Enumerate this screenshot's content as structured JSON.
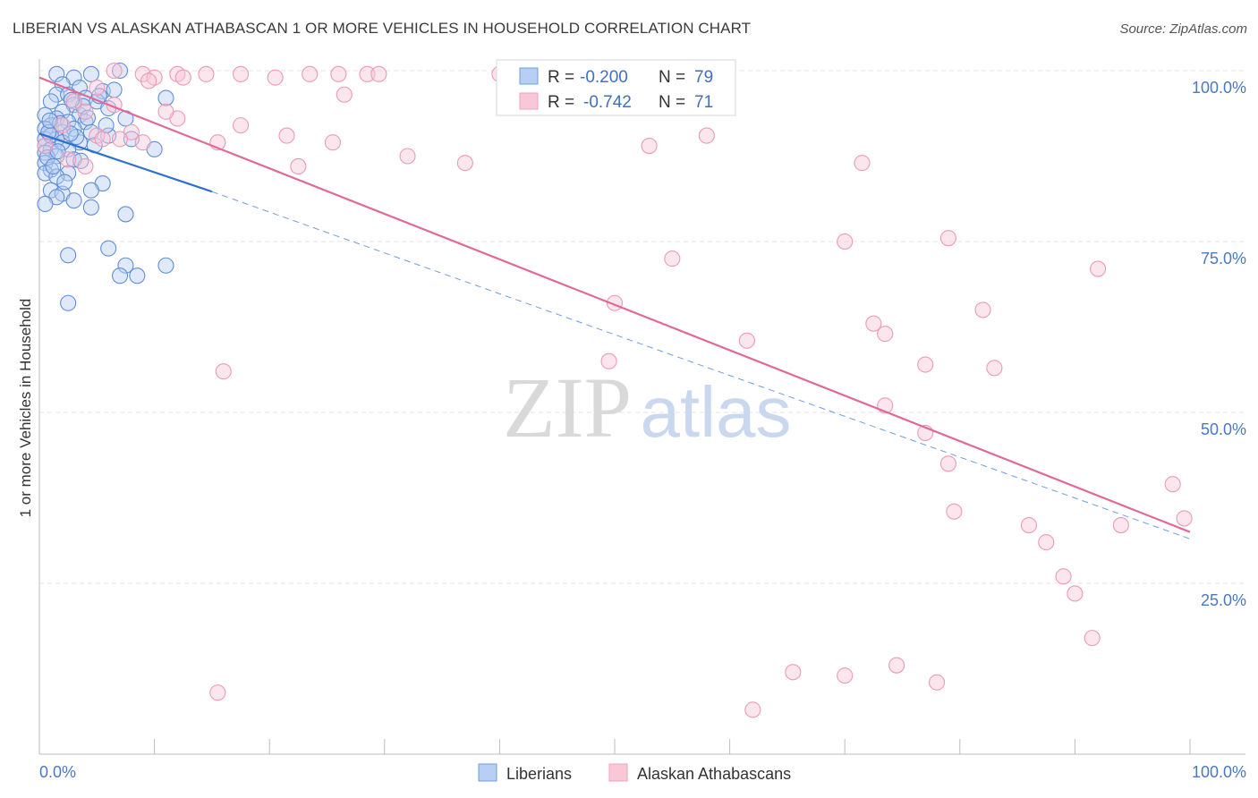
{
  "header": {
    "title": "LIBERIAN VS ALASKAN ATHABASCAN 1 OR MORE VEHICLES IN HOUSEHOLD CORRELATION CHART",
    "source": "Source: ZipAtlas.com"
  },
  "watermark": {
    "zip": "ZIP",
    "atlas": "atlas"
  },
  "chart_data": {
    "type": "scatter",
    "title": "LIBERIAN VS ALASKAN ATHABASCAN 1 OR MORE VEHICLES IN HOUSEHOLD CORRELATION CHART",
    "xlabel": "",
    "ylabel": "1 or more Vehicles in Household",
    "xlim": [
      0,
      100
    ],
    "ylim": [
      0,
      100
    ],
    "x_tick_labels": [
      "0.0%",
      "100.0%"
    ],
    "y_ticks": [
      25,
      50,
      75,
      100
    ],
    "y_tick_labels": [
      "25.0%",
      "50.0%",
      "75.0%",
      "100.0%"
    ],
    "grid": true,
    "legend_position": "top-center",
    "colors": {
      "Liberians": "#6f9de0",
      "Alaskan Athabascans": "#f0a0bb",
      "liberian_line": "#2f6fd0",
      "athabascan_line": "#e06a95"
    },
    "series": [
      {
        "name": "Liberians",
        "R": "-0.200",
        "N": "79",
        "trend": {
          "x0": 0,
          "y0": 90.8,
          "x1": 15,
          "y1": 82.3,
          "dashed_to_x": 100,
          "dashed_to_y": 31.5
        },
        "points": [
          [
            1.5,
            99.5
          ],
          [
            3.0,
            99.0
          ],
          [
            2.0,
            98.0
          ],
          [
            4.5,
            99.5
          ],
          [
            7.0,
            100
          ],
          [
            3.5,
            97.5
          ],
          [
            5.5,
            97.0
          ],
          [
            1.5,
            96.5
          ],
          [
            2.5,
            96.5
          ],
          [
            4.0,
            96.0
          ],
          [
            1.0,
            95.5
          ],
          [
            3.0,
            95.0
          ],
          [
            5.0,
            95.5
          ],
          [
            6.0,
            94.5
          ],
          [
            11.0,
            96.0
          ],
          [
            2.0,
            94.0
          ],
          [
            3.5,
            93.5
          ],
          [
            0.5,
            93.5
          ],
          [
            1.5,
            93.0
          ],
          [
            2.5,
            92.5
          ],
          [
            4.0,
            92.5
          ],
          [
            7.5,
            93.0
          ],
          [
            1.0,
            92.0
          ],
          [
            0.5,
            91.5
          ],
          [
            2.0,
            91.0
          ],
          [
            3.0,
            91.5
          ],
          [
            4.5,
            91.0
          ],
          [
            6.0,
            90.5
          ],
          [
            0.5,
            90.0
          ],
          [
            1.5,
            90.0
          ],
          [
            3.5,
            89.5
          ],
          [
            8.0,
            90.0
          ],
          [
            0.5,
            89.0
          ],
          [
            1.0,
            88.5
          ],
          [
            2.5,
            88.5
          ],
          [
            0.5,
            88.0
          ],
          [
            10.0,
            88.5
          ],
          [
            1.5,
            87.5
          ],
          [
            3.0,
            87.0
          ],
          [
            0.5,
            86.5
          ],
          [
            1.0,
            85.5
          ],
          [
            2.5,
            85.0
          ],
          [
            0.5,
            85.0
          ],
          [
            1.5,
            84.5
          ],
          [
            5.5,
            83.5
          ],
          [
            1.0,
            82.5
          ],
          [
            2.0,
            82.0
          ],
          [
            4.5,
            82.5
          ],
          [
            1.5,
            81.5
          ],
          [
            3.0,
            81.0
          ],
          [
            0.5,
            80.5
          ],
          [
            4.5,
            80.0
          ],
          [
            7.5,
            79.0
          ],
          [
            6.0,
            74.0
          ],
          [
            2.5,
            73.0
          ],
          [
            7.5,
            71.5
          ],
          [
            11.0,
            71.5
          ],
          [
            7.0,
            70.0
          ],
          [
            8.5,
            70.0
          ],
          [
            2.5,
            66.0
          ],
          [
            1.0,
            90.5
          ],
          [
            2.0,
            89.5
          ],
          [
            0.8,
            91.0
          ],
          [
            1.8,
            92.3
          ],
          [
            3.8,
            94.8
          ],
          [
            5.2,
            96.3
          ],
          [
            2.8,
            95.7
          ],
          [
            6.5,
            97.2
          ],
          [
            4.2,
            93.1
          ],
          [
            0.7,
            87.3
          ],
          [
            1.2,
            86.0
          ],
          [
            2.2,
            83.7
          ],
          [
            3.2,
            90.3
          ],
          [
            4.8,
            89.1
          ],
          [
            0.9,
            92.7
          ],
          [
            1.6,
            88.2
          ],
          [
            2.7,
            90.8
          ],
          [
            3.6,
            86.8
          ],
          [
            5.8,
            92.0
          ]
        ]
      },
      {
        "name": "Alaskan Athabascans",
        "R": "-0.742",
        "N": "71",
        "trend": {
          "x0": 0,
          "y0": 99.0,
          "x1": 100,
          "y1": 32.5
        },
        "points": [
          [
            6.5,
            100
          ],
          [
            9.0,
            99.5
          ],
          [
            12.0,
            99.5
          ],
          [
            14.5,
            99.5
          ],
          [
            17.5,
            99.5
          ],
          [
            23.5,
            99.5
          ],
          [
            26.0,
            99.5
          ],
          [
            28.5,
            99.5
          ],
          [
            29.5,
            99.5
          ],
          [
            10.0,
            99.0
          ],
          [
            12.5,
            99.0
          ],
          [
            20.5,
            99.0
          ],
          [
            9.5,
            98.5
          ],
          [
            5.0,
            97.5
          ],
          [
            26.5,
            96.5
          ],
          [
            6.5,
            95.0
          ],
          [
            4.0,
            94.0
          ],
          [
            12.0,
            93.0
          ],
          [
            17.5,
            92.0
          ],
          [
            8.0,
            91.0
          ],
          [
            21.5,
            90.5
          ],
          [
            5.0,
            90.5
          ],
          [
            5.5,
            90.0
          ],
          [
            7.0,
            90.0
          ],
          [
            9.0,
            89.5
          ],
          [
            15.5,
            89.5
          ],
          [
            25.5,
            89.5
          ],
          [
            53.0,
            89.0
          ],
          [
            58.0,
            90.5
          ],
          [
            32.0,
            87.5
          ],
          [
            37.0,
            86.5
          ],
          [
            22.5,
            86.0
          ],
          [
            71.5,
            86.5
          ],
          [
            4.0,
            86.0
          ],
          [
            0.5,
            89.0
          ],
          [
            2.0,
            92.0
          ],
          [
            40.0,
            99.5
          ],
          [
            50.0,
            66.0
          ],
          [
            49.5,
            57.5
          ],
          [
            55.0,
            72.5
          ],
          [
            61.5,
            60.5
          ],
          [
            70.0,
            75.0
          ],
          [
            79.0,
            75.5
          ],
          [
            92.0,
            71.0
          ],
          [
            72.5,
            63.0
          ],
          [
            73.5,
            61.5
          ],
          [
            82.0,
            65.0
          ],
          [
            77.0,
            57.0
          ],
          [
            83.0,
            56.5
          ],
          [
            73.5,
            51.0
          ],
          [
            77.0,
            47.0
          ],
          [
            79.0,
            42.5
          ],
          [
            79.5,
            35.5
          ],
          [
            86.0,
            33.5
          ],
          [
            87.5,
            31.0
          ],
          [
            89.0,
            26.0
          ],
          [
            90.0,
            23.5
          ],
          [
            94.0,
            33.5
          ],
          [
            98.5,
            39.5
          ],
          [
            99.5,
            34.5
          ],
          [
            91.5,
            17.0
          ],
          [
            16.0,
            56.0
          ],
          [
            65.5,
            12.0
          ],
          [
            70.0,
            11.5
          ],
          [
            74.5,
            13.0
          ],
          [
            78.0,
            10.5
          ],
          [
            62.0,
            6.5
          ],
          [
            15.5,
            9.0
          ],
          [
            3.0,
            95.5
          ],
          [
            11.0,
            94.0
          ],
          [
            2.5,
            87.0
          ]
        ]
      }
    ]
  },
  "legend": {
    "r_label": "R =",
    "n_label": "N =",
    "series_names": [
      "Liberians",
      "Alaskan Athabascans"
    ]
  }
}
